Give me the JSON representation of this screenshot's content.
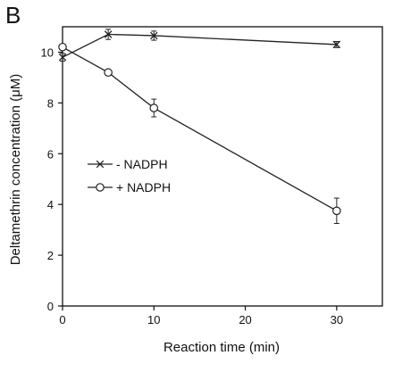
{
  "panel_label": "B",
  "chart_data": {
    "type": "line",
    "title": "",
    "xlabel": "Reaction time (min)",
    "ylabel": "Deltamethrin concentration (μM)",
    "xlim": [
      0,
      35
    ],
    "ylim": [
      0,
      11
    ],
    "xticks": [
      0,
      10,
      20,
      30
    ],
    "yticks": [
      0,
      2,
      4,
      6,
      8,
      10
    ],
    "grid": false,
    "legend_position": "middle-left",
    "series": [
      {
        "name": "- NADPH",
        "marker": "x",
        "x": [
          0,
          5,
          10,
          30
        ],
        "y": [
          9.8,
          10.7,
          10.65,
          10.3
        ],
        "error": [
          0.15,
          0.2,
          0.18,
          0.12
        ]
      },
      {
        "name": "+ NADPH",
        "marker": "o",
        "x": [
          0,
          5,
          10,
          30
        ],
        "y": [
          10.2,
          9.2,
          7.8,
          3.75
        ],
        "error": [
          0.08,
          0.1,
          0.35,
          0.5
        ]
      }
    ]
  }
}
